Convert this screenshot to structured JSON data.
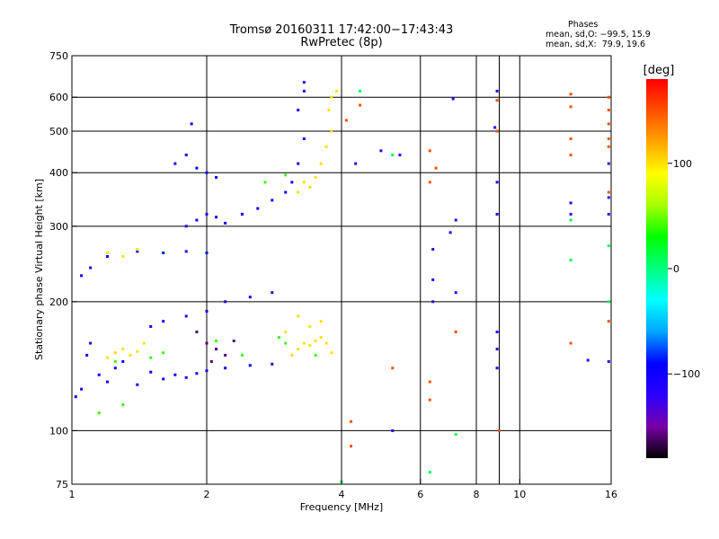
{
  "header": {
    "title_line1": "Tromsø 20160311 17:42:00−17:43:43",
    "title_line2": "RwPretec (8p)"
  },
  "stats": {
    "heading": "Phases",
    "line_o": "mean, sd,O: −99.5, 15.9",
    "line_x": "mean, sd,X:  79.9, 19.6"
  },
  "chart_data": {
    "type": "scatter",
    "xlabel": "Frequency [MHz]",
    "ylabel": "Stationary phase Virtual Height [km]",
    "xscale": "log",
    "yscale": "log",
    "xlim": [
      1,
      16
    ],
    "ylim": [
      75,
      750
    ],
    "x_ticks": [
      1,
      2,
      4,
      6,
      8,
      10,
      16
    ],
    "x_tick_labels": [
      "1",
      "2",
      "4",
      "6",
      "8",
      "10",
      "16"
    ],
    "x_gridlines": [
      2,
      4,
      6,
      8,
      9,
      10
    ],
    "y_ticks": [
      75,
      100,
      200,
      300,
      400,
      500,
      600,
      750
    ],
    "y_tick_labels": [
      "75",
      "100",
      "200",
      "300",
      "400",
      "500",
      "600",
      "750"
    ],
    "y_gridlines": [
      100,
      200,
      300,
      400,
      500,
      600
    ],
    "grid": true,
    "colorbar": {
      "label": "[deg]",
      "range": [
        -180,
        180
      ],
      "ticks": [
        100,
        0,
        -100
      ],
      "tick_labels": [
        "100",
        "0",
        "−100"
      ],
      "colors": [
        "#000000",
        "#7a00a8",
        "#2a00ff",
        "#0000ff",
        "#00a6ff",
        "#00ffff",
        "#00ff7f",
        "#00ff00",
        "#a6ff00",
        "#ffff00",
        "#ffa600",
        "#ff5000",
        "#ff0000"
      ]
    },
    "series": [
      {
        "phase_deg": -100,
        "points": [
          [
            1.02,
            120
          ],
          [
            1.05,
            125
          ],
          [
            1.08,
            150
          ],
          [
            1.1,
            160
          ],
          [
            1.15,
            135
          ],
          [
            1.2,
            130
          ],
          [
            1.25,
            140
          ],
          [
            1.3,
            145
          ],
          [
            1.4,
            128
          ],
          [
            1.5,
            137
          ],
          [
            1.6,
            132
          ],
          [
            1.7,
            135
          ],
          [
            1.8,
            133
          ],
          [
            1.9,
            136
          ],
          [
            2.0,
            138
          ],
          [
            2.2,
            140
          ],
          [
            2.5,
            142
          ],
          [
            2.8,
            143
          ],
          [
            1.05,
            230
          ],
          [
            1.1,
            240
          ],
          [
            1.2,
            255
          ],
          [
            1.4,
            262
          ],
          [
            1.6,
            260
          ],
          [
            1.8,
            262
          ],
          [
            2.0,
            260
          ],
          [
            1.8,
            300
          ],
          [
            1.9,
            310
          ],
          [
            2.0,
            320
          ],
          [
            2.1,
            315
          ],
          [
            2.2,
            305
          ],
          [
            2.4,
            320
          ],
          [
            2.6,
            330
          ],
          [
            2.8,
            345
          ],
          [
            3.0,
            360
          ],
          [
            3.1,
            380
          ],
          [
            3.2,
            420
          ],
          [
            3.3,
            480
          ],
          [
            3.2,
            560
          ],
          [
            3.3,
            620
          ],
          [
            1.7,
            420
          ],
          [
            1.8,
            440
          ],
          [
            1.9,
            410
          ],
          [
            2.0,
            400
          ],
          [
            2.1,
            390
          ],
          [
            1.85,
            520
          ],
          [
            1.5,
            175
          ],
          [
            1.6,
            180
          ],
          [
            1.8,
            185
          ],
          [
            2.0,
            190
          ],
          [
            2.2,
            200
          ],
          [
            2.5,
            205
          ],
          [
            2.8,
            210
          ],
          [
            3.3,
            650
          ]
        ]
      },
      {
        "phase_deg": 100,
        "points": [
          [
            1.3,
            155
          ],
          [
            1.35,
            150
          ],
          [
            1.4,
            153
          ],
          [
            1.2,
            148
          ],
          [
            1.25,
            152
          ],
          [
            1.45,
            160
          ],
          [
            3.1,
            150
          ],
          [
            3.2,
            155
          ],
          [
            3.3,
            160
          ],
          [
            3.4,
            158
          ],
          [
            3.5,
            162
          ],
          [
            3.6,
            165
          ],
          [
            3.7,
            160
          ],
          [
            3.8,
            152
          ],
          [
            3.0,
            170
          ],
          [
            3.2,
            185
          ],
          [
            3.4,
            175
          ],
          [
            3.6,
            180
          ],
          [
            3.4,
            370
          ],
          [
            3.5,
            390
          ],
          [
            3.6,
            420
          ],
          [
            3.7,
            460
          ],
          [
            3.8,
            500
          ],
          [
            3.75,
            560
          ],
          [
            3.8,
            600
          ],
          [
            3.9,
            620
          ],
          [
            3.2,
            360
          ],
          [
            3.3,
            380
          ],
          [
            1.2,
            260
          ],
          [
            1.4,
            265
          ],
          [
            1.3,
            255
          ]
        ]
      },
      {
        "phase_deg": 40,
        "points": [
          [
            1.15,
            110
          ],
          [
            1.3,
            115
          ],
          [
            1.5,
            148
          ],
          [
            1.6,
            152
          ],
          [
            1.25,
            145
          ],
          [
            2.1,
            162
          ],
          [
            2.4,
            150
          ],
          [
            2.9,
            165
          ],
          [
            3.0,
            160
          ],
          [
            3.5,
            150
          ],
          [
            2.7,
            380
          ],
          [
            3.0,
            395
          ]
        ]
      },
      {
        "phase_deg": 150,
        "points": [
          [
            4.4,
            575
          ],
          [
            4.1,
            530
          ],
          [
            6.3,
            450
          ],
          [
            6.5,
            410
          ],
          [
            6.3,
            380
          ],
          [
            8.9,
            590
          ],
          [
            8.9,
            500
          ],
          [
            13.0,
            610
          ],
          [
            13.0,
            570
          ],
          [
            13.0,
            480
          ],
          [
            13.0,
            440
          ],
          [
            15.8,
            600
          ],
          [
            15.8,
            560
          ],
          [
            15.8,
            520
          ],
          [
            15.8,
            480
          ],
          [
            15.8,
            460
          ],
          [
            15.8,
            360
          ],
          [
            15.8,
            180
          ],
          [
            5.2,
            140
          ],
          [
            4.2,
            105
          ],
          [
            6.3,
            130
          ],
          [
            6.3,
            118
          ],
          [
            7.2,
            170
          ],
          [
            9.0,
            100
          ],
          [
            13.0,
            160
          ],
          [
            4.2,
            92
          ]
        ]
      },
      {
        "phase_deg": -120,
        "points": [
          [
            5.2,
            100
          ],
          [
            7.1,
            595
          ],
          [
            8.9,
            620
          ],
          [
            8.8,
            510
          ],
          [
            8.9,
            380
          ],
          [
            8.9,
            320
          ],
          [
            13.0,
            340
          ],
          [
            13.0,
            320
          ],
          [
            15.8,
            420
          ],
          [
            15.8,
            350
          ],
          [
            15.8,
            320
          ],
          [
            15.8,
            145
          ],
          [
            14.2,
            146
          ],
          [
            7.2,
            310
          ],
          [
            7.0,
            290
          ],
          [
            6.4,
            265
          ],
          [
            7.2,
            210
          ],
          [
            8.9,
            170
          ],
          [
            8.9,
            155
          ],
          [
            6.4,
            225
          ],
          [
            6.4,
            200
          ],
          [
            8.9,
            140
          ],
          [
            4.9,
            450
          ],
          [
            5.4,
            440
          ],
          [
            4.3,
            420
          ]
        ]
      },
      {
        "phase_deg": 10,
        "points": [
          [
            5.2,
            440
          ],
          [
            6.3,
            80
          ],
          [
            13.0,
            250
          ],
          [
            13.0,
            310
          ],
          [
            15.8,
            270
          ],
          [
            15.8,
            200
          ],
          [
            4.4,
            620
          ],
          [
            4.0,
            76
          ],
          [
            7.2,
            98
          ]
        ]
      },
      {
        "phase_deg": -160,
        "points": [
          [
            2.0,
            160
          ],
          [
            2.1,
            155
          ],
          [
            2.2,
            150
          ],
          [
            1.9,
            170
          ],
          [
            2.3,
            162
          ],
          [
            2.05,
            145
          ]
        ]
      }
    ]
  }
}
